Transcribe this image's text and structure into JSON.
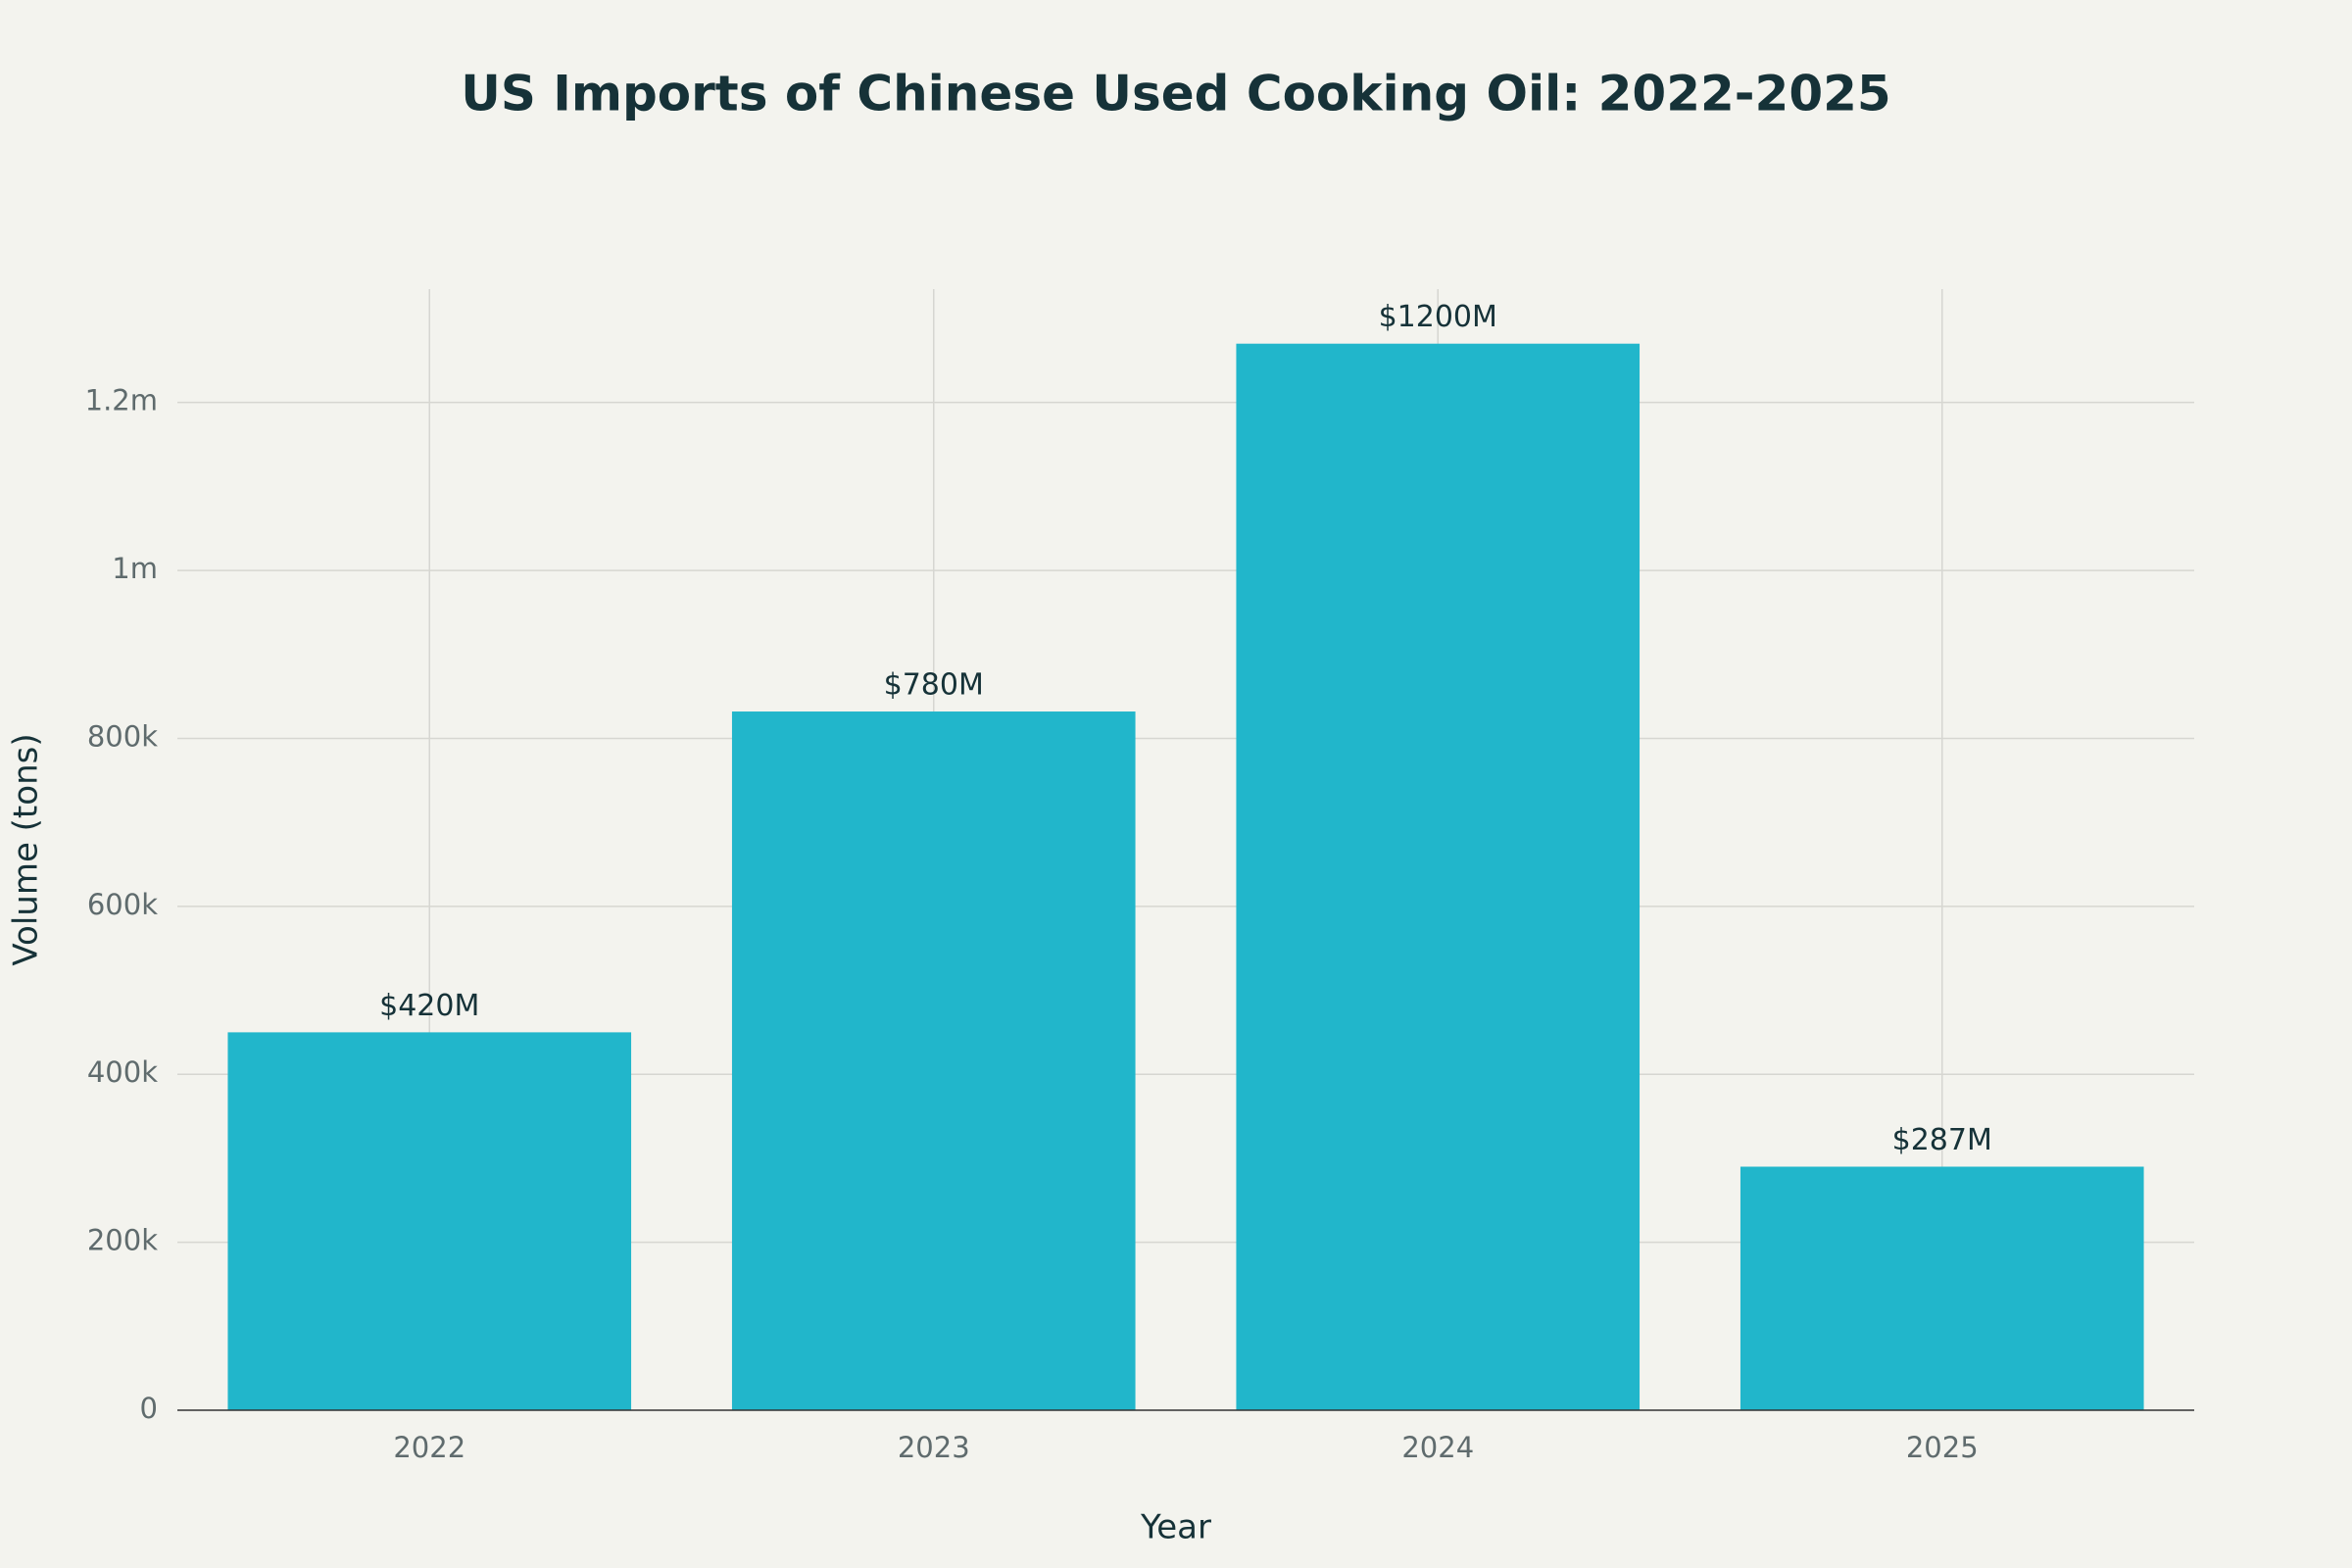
{
  "chart_data": {
    "type": "bar",
    "title": "US Imports of Chinese Used Cooking Oil: 2022-2025",
    "x_label": "Year",
    "y_label": "Volume (tons)",
    "categories": [
      "2022",
      "2023",
      "2024",
      "2025"
    ],
    "values": [
      450000,
      832000,
      1270000,
      290000
    ],
    "bar_labels": [
      "$420M",
      "$780M",
      "$1200M",
      "$287M"
    ],
    "color": "#21b6cb",
    "ylim": [
      0,
      1335000
    ],
    "yticks": [
      0,
      {
        "value": 200000,
        "label": "200k"
      },
      {
        "value": 400000,
        "label": "400k"
      },
      {
        "value": 600000,
        "label": "600k"
      },
      {
        "value": 800000,
        "label": "800k"
      },
      {
        "value": 1000000,
        "label": "1m"
      },
      {
        "value": 1200000,
        "label": "1.2m"
      }
    ],
    "grid": true
  }
}
